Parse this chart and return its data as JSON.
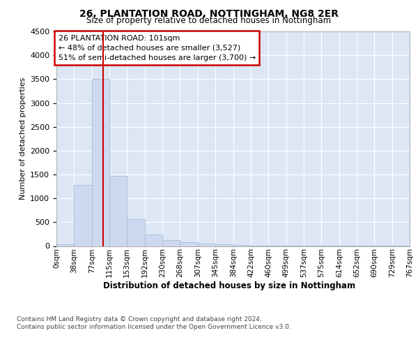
{
  "title_line1": "26, PLANTATION ROAD, NOTTINGHAM, NG8 2ER",
  "title_line2": "Size of property relative to detached houses in Nottingham",
  "xlabel": "Distribution of detached houses by size in Nottingham",
  "ylabel": "Number of detached properties",
  "annotation_line1": "26 PLANTATION ROAD: 101sqm",
  "annotation_line2": "← 48% of detached houses are smaller (3,527)",
  "annotation_line3": "51% of semi-detached houses are larger (3,700) →",
  "property_size_sqm": 101,
  "bin_edges": [
    0,
    38,
    77,
    115,
    153,
    192,
    230,
    268,
    307,
    345,
    384,
    422,
    460,
    499,
    537,
    575,
    614,
    652,
    690,
    729,
    767
  ],
  "bar_values": [
    30,
    1280,
    3500,
    1470,
    570,
    240,
    130,
    75,
    55,
    35,
    25,
    10,
    5,
    3,
    2,
    2,
    2,
    2,
    2,
    2
  ],
  "bar_color": "#ccd9f0",
  "bar_edge_color": "#aabbd4",
  "vline_color": "#cc0000",
  "vline_x": 101,
  "ylim_max": 4500,
  "yticks": [
    0,
    500,
    1000,
    1500,
    2000,
    2500,
    3000,
    3500,
    4000,
    4500
  ],
  "plot_bg_color": "#dce6f5",
  "grid_color": "#ffffff",
  "footer_line1": "Contains HM Land Registry data © Crown copyright and database right 2024.",
  "footer_line2": "Contains public sector information licensed under the Open Government Licence v3.0."
}
